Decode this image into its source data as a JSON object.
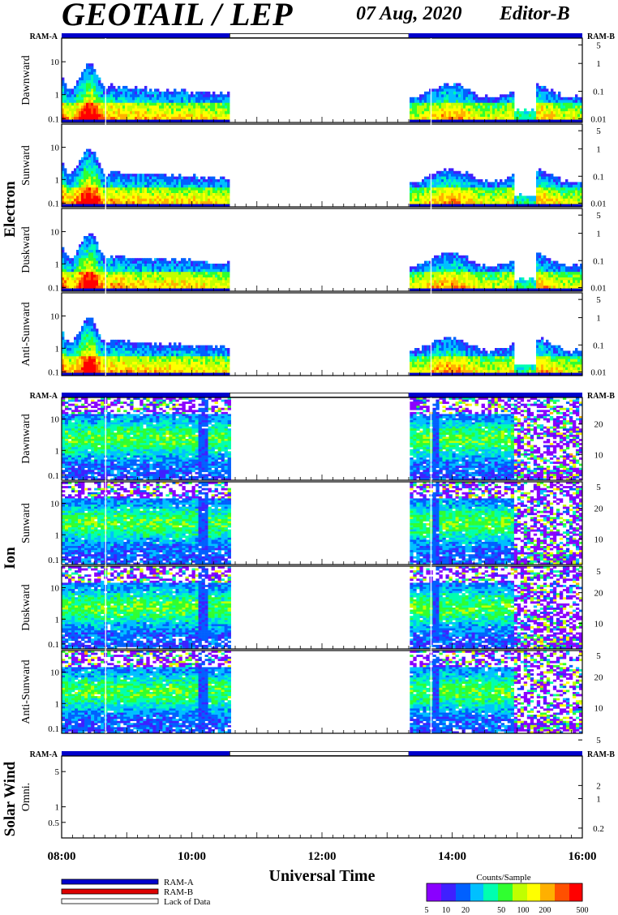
{
  "header": {
    "title": "GEOTAIL / LEP",
    "date": "07 Aug, 2020",
    "editor": "Editor-B"
  },
  "status_labels": {
    "ram_a": "RAM-A",
    "ram_b": "RAM-B"
  },
  "colors": {
    "ram_a": "#0000cc",
    "ram_b": "#dd0000",
    "lack_of_data": "#ffffff",
    "colorscale": [
      "#8a00ff",
      "#3f20ff",
      "#0060ff",
      "#00c0ff",
      "#00ffb0",
      "#30ff30",
      "#c0ff00",
      "#ffff00",
      "#ffb000",
      "#ff5000",
      "#ff0000"
    ]
  },
  "status_bar": {
    "segments": [
      {
        "from": "08:00",
        "to": "10:35",
        "state": "RAM-A"
      },
      {
        "from": "10:35",
        "to": "13:20",
        "state": "Lack of Data"
      },
      {
        "from": "13:20",
        "to": "16:00",
        "state": "RAM-A"
      }
    ]
  },
  "chart_data": {
    "type": "heatmap",
    "xlabel": "Universal Time",
    "x_ticks": [
      "08:00",
      "10:00",
      "12:00",
      "14:00",
      "16:00"
    ],
    "data_coverage": [
      [
        "08:00",
        "10:35"
      ],
      [
        "13:20",
        "16:00"
      ]
    ],
    "groups": [
      {
        "name": "Electron",
        "left_ticks": [
          "0.1",
          "1",
          "10"
        ],
        "right_ticks": [
          "0.01",
          "0.1",
          "1",
          "5"
        ],
        "panels": [
          {
            "name": "Dawnward",
            "pattern": "electron",
            "seed": 11
          },
          {
            "name": "Sunward",
            "pattern": "electron",
            "seed": 23
          },
          {
            "name": "Duskward",
            "pattern": "electron",
            "seed": 37
          },
          {
            "name": "Anti-Sunward",
            "pattern": "electron",
            "seed": 41
          }
        ]
      },
      {
        "name": "Ion",
        "left_ticks": [
          "0.1",
          "1",
          "10"
        ],
        "right_ticks": [
          "5",
          "10",
          "20"
        ],
        "panels": [
          {
            "name": "Dawnward",
            "pattern": "ion",
            "seed": 53
          },
          {
            "name": "Sunward",
            "pattern": "ion",
            "seed": 67
          },
          {
            "name": "Duskward",
            "pattern": "ion",
            "seed": 79
          },
          {
            "name": "Anti-Sunward",
            "pattern": "ion",
            "seed": 83
          }
        ]
      },
      {
        "name": "Solar Wind",
        "left_ticks": [
          "0.5",
          "1",
          "5"
        ],
        "right_ticks": [
          "0.2",
          "1",
          "2"
        ],
        "panels": [
          {
            "name": "Omni.",
            "pattern": "empty",
            "seed": 97
          }
        ]
      }
    ],
    "colorbar": {
      "label": "Counts/Sample",
      "ticks": [
        "5",
        "10",
        "20",
        "50",
        "100",
        "200",
        "500"
      ]
    }
  },
  "legend": {
    "items": [
      {
        "label": "RAM-A",
        "color": "#0000cc"
      },
      {
        "label": "RAM-B",
        "color": "#dd0000"
      },
      {
        "label": "Lack of Data",
        "color": "#ffffff"
      }
    ]
  }
}
